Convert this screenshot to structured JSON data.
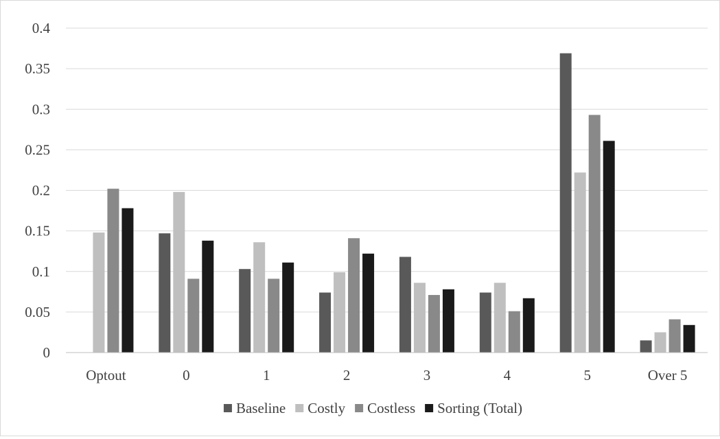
{
  "chart_data": {
    "type": "bar",
    "title": "",
    "xlabel": "",
    "ylabel": "",
    "ylim": [
      0,
      0.4
    ],
    "yticks": [
      "0",
      "0.05",
      "0.1",
      "0.15",
      "0.2",
      "0.25",
      "0.3",
      "0.35",
      "0.4"
    ],
    "grid": true,
    "legend_position": "bottom",
    "categories": [
      "Optout",
      "0",
      "1",
      "2",
      "3",
      "4",
      "5",
      "Over 5"
    ],
    "series": [
      {
        "name": "Baseline",
        "color": "#595959",
        "values": [
          0,
          0.147,
          0.103,
          0.074,
          0.118,
          0.074,
          0.369,
          0.015
        ]
      },
      {
        "name": "Costly",
        "color": "#bfbfbf",
        "values": [
          0.148,
          0.198,
          0.136,
          0.099,
          0.086,
          0.086,
          0.222,
          0.025
        ]
      },
      {
        "name": "Costless",
        "color": "#898989",
        "values": [
          0.202,
          0.091,
          0.091,
          0.141,
          0.071,
          0.051,
          0.293,
          0.041
        ]
      },
      {
        "name": "Sorting (Total)",
        "color": "#1a1a1a",
        "values": [
          0.178,
          0.138,
          0.111,
          0.122,
          0.078,
          0.067,
          0.261,
          0.034
        ]
      }
    ]
  }
}
